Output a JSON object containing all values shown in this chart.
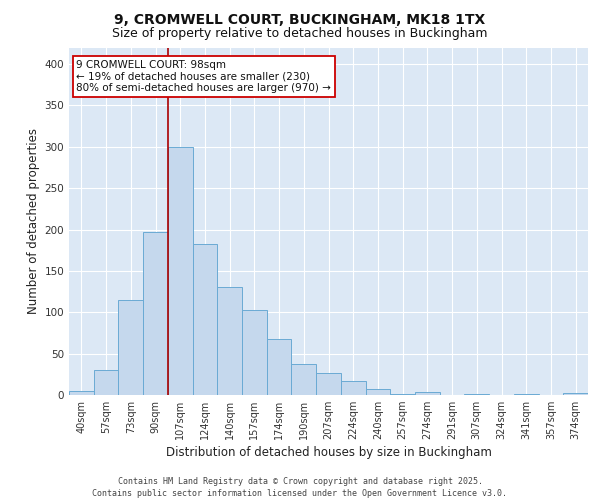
{
  "title_line1": "9, CROMWELL COURT, BUCKINGHAM, MK18 1TX",
  "title_line2": "Size of property relative to detached houses in Buckingham",
  "xlabel": "Distribution of detached houses by size in Buckingham",
  "ylabel": "Number of detached properties",
  "categories": [
    "40sqm",
    "57sqm",
    "73sqm",
    "90sqm",
    "107sqm",
    "124sqm",
    "140sqm",
    "157sqm",
    "174sqm",
    "190sqm",
    "207sqm",
    "224sqm",
    "240sqm",
    "257sqm",
    "274sqm",
    "291sqm",
    "307sqm",
    "324sqm",
    "341sqm",
    "357sqm",
    "374sqm"
  ],
  "values": [
    5,
    30,
    115,
    197,
    300,
    183,
    130,
    103,
    68,
    38,
    27,
    17,
    7,
    1,
    4,
    0,
    1,
    0,
    1,
    0,
    2
  ],
  "bar_color": "#c5d8ed",
  "bar_edge_color": "#6aaad4",
  "vline_x_index": 3,
  "vline_color": "#aa0000",
  "annotation_text": "9 CROMWELL COURT: 98sqm\n← 19% of detached houses are smaller (230)\n80% of semi-detached houses are larger (970) →",
  "annotation_box_color": "#ffffff",
  "annotation_box_edge": "#cc0000",
  "ylim": [
    0,
    420
  ],
  "yticks": [
    0,
    50,
    100,
    150,
    200,
    250,
    300,
    350,
    400
  ],
  "background_color": "#dce8f5",
  "grid_color": "#ffffff",
  "fig_background": "#ffffff",
  "footer_text": "Contains HM Land Registry data © Crown copyright and database right 2025.\nContains public sector information licensed under the Open Government Licence v3.0.",
  "title_fontsize": 10,
  "subtitle_fontsize": 9,
  "axis_label_fontsize": 8.5,
  "tick_fontsize": 7,
  "annotation_fontsize": 7.5,
  "footer_fontsize": 6
}
